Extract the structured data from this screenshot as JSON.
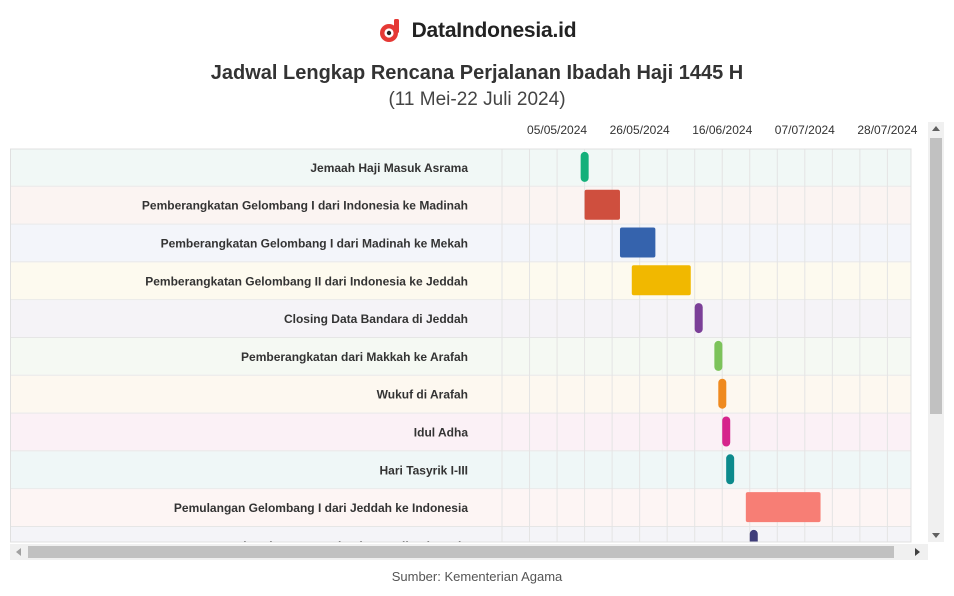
{
  "brand": {
    "name": "DataIndonesia.id",
    "logo_icon": "dataindonesia-logo-icon",
    "logo_color": "#e53935"
  },
  "chart_data": {
    "type": "gantt",
    "title": "Jadwal Lengkap Rencana Perjalanan Ibadah Haji 1445 H",
    "subtitle": "(11 Mei-22 Juli 2024)",
    "x_axis": {
      "type": "date",
      "range": [
        "2024-04-21",
        "2024-08-03"
      ],
      "ticks": [
        {
          "date": "2024-05-05",
          "label": "05/05/2024"
        },
        {
          "date": "2024-05-26",
          "label": "26/05/2024"
        },
        {
          "date": "2024-06-16",
          "label": "16/06/2024"
        },
        {
          "date": "2024-07-07",
          "label": "07/07/2024"
        },
        {
          "date": "2024-07-28",
          "label": "28/07/2024"
        }
      ]
    },
    "tasks": [
      {
        "name": "Jemaah Haji Masuk Asrama",
        "start": "2024-05-11",
        "end": "2024-05-12",
        "color": "#14b07a",
        "band": "#f1f8f6"
      },
      {
        "name": "Pemberangkatan Gelombang I dari Indonesia ke Madinah",
        "start": "2024-05-12",
        "end": "2024-05-21",
        "color": "#cf4f3e",
        "band": "#fbf4f2"
      },
      {
        "name": "Pemberangkatan Gelombang I dari Madinah ke Mekah",
        "start": "2024-05-21",
        "end": "2024-05-30",
        "color": "#3563ad",
        "band": "#f3f5fa"
      },
      {
        "name": "Pemberangkatan Gelombang II dari Indonesia ke Jeddah",
        "start": "2024-05-24",
        "end": "2024-06-08",
        "color": "#f1b800",
        "band": "#fdfaef"
      },
      {
        "name": "Closing Data Bandara di Jeddah",
        "start": "2024-06-09",
        "end": "2024-06-10",
        "color": "#7b3f98",
        "band": "#f5f3f7"
      },
      {
        "name": "Pemberangkatan dari Makkah ke Arafah",
        "start": "2024-06-14",
        "end": "2024-06-15",
        "color": "#7cc35a",
        "band": "#f5f9f3"
      },
      {
        "name": "Wukuf di Arafah",
        "start": "2024-06-15",
        "end": "2024-06-16",
        "color": "#ef8a1f",
        "band": "#fdf8f0"
      },
      {
        "name": "Idul Adha",
        "start": "2024-06-16",
        "end": "2024-06-17",
        "color": "#d6248c",
        "band": "#fbf1f6"
      },
      {
        "name": "Hari Tasyrik I-III",
        "start": "2024-06-17",
        "end": "2024-06-18",
        "color": "#0c8a8c",
        "band": "#eff7f7"
      },
      {
        "name": "Pemulangan Gelombang I dari Jeddah ke Indonesia",
        "start": "2024-06-22",
        "end": "2024-07-11",
        "color": "#f77e75",
        "band": "#fdf5f4"
      },
      {
        "name": "Awal Kedatangan Gelombang I di Indonesia",
        "start": "2024-06-23",
        "end": "2024-06-24",
        "color": "#3f3d7a",
        "band": "#f4f4f8"
      }
    ],
    "grid": true
  },
  "source": "Sumber: Kementerian Agama"
}
